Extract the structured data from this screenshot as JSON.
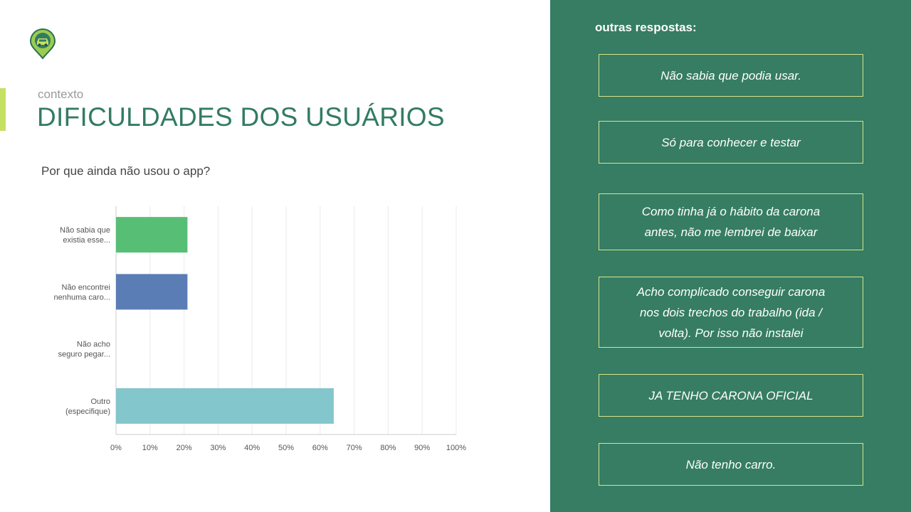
{
  "header": {
    "kicker": "contexto",
    "title": "DIFICULDADES DOS USUÁRIOS",
    "logo_icon": "car-location-pin-icon"
  },
  "question": "Por que ainda não usou o app?",
  "colors": {
    "brand_green": "#337b64",
    "panel_green": "#367d63",
    "accent_lime": "#c5e063",
    "box_border": "#d6e58a"
  },
  "chart_data": {
    "type": "bar",
    "orientation": "horizontal",
    "categories": [
      "Não sabia que existia esse...",
      "Não encontrei nenhuma caro...",
      "Não acho seguro pegar...",
      "Outro (especifique)"
    ],
    "category_lines": [
      [
        "Não sabia que",
        "existia esse..."
      ],
      [
        "Não encontrei",
        "nenhuma caro..."
      ],
      [
        "Não acho",
        "seguro pegar..."
      ],
      [
        "Outro",
        "(especifique)"
      ]
    ],
    "values": [
      21,
      21,
      0,
      64
    ],
    "bar_colors": [
      "#57be76",
      "#5b7db5",
      "#d98f4f",
      "#83c6cc"
    ],
    "xlim": [
      0,
      100
    ],
    "xticks": [
      "0%",
      "10%",
      "20%",
      "30%",
      "40%",
      "50%",
      "60%",
      "70%",
      "80%",
      "90%",
      "100%"
    ],
    "grid": true
  },
  "other_answers": {
    "heading": "outras respostas:",
    "items": [
      "Não sabia que podia usar.",
      "Só para conhecer e testar",
      "Como tinha já o hábito da carona antes, não me lembrei de baixar",
      "Acho complicado conseguir carona nos dois trechos do trabalho (ida / volta). Por isso não instalei",
      "JA TENHO CARONA OFICIAL",
      "Não tenho carro."
    ]
  }
}
